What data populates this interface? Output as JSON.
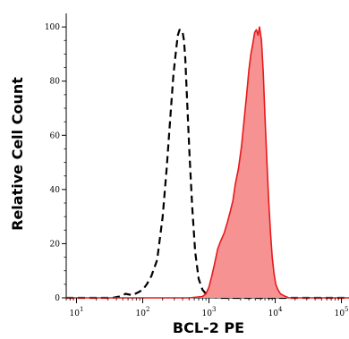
{
  "chart_data": {
    "type": "area",
    "xlabel": "BCL-2 PE",
    "ylabel": "Relative Cell Count",
    "xscale": "log",
    "xlim": [
      7,
      130000
    ],
    "ylim": [
      0,
      105
    ],
    "x_ticks": [
      {
        "value": 10,
        "base": "10",
        "exp": "1"
      },
      {
        "value": 100,
        "base": "10",
        "exp": "2"
      },
      {
        "value": 1000,
        "base": "10",
        "exp": "3"
      },
      {
        "value": 10000,
        "base": "10",
        "exp": "4"
      },
      {
        "value": 100000,
        "base": "10",
        "exp": "5"
      }
    ],
    "y_ticks": [
      0,
      20,
      40,
      60,
      80,
      100
    ],
    "series": [
      {
        "style": "dashed",
        "color": "#000000",
        "filled": false,
        "x": [
          7,
          20,
          35,
          45,
          55,
          70,
          85,
          100,
          115,
          135,
          165,
          200,
          230,
          260,
          290,
          320,
          340,
          360,
          380,
          400,
          420,
          440,
          470,
          510,
          560,
          620,
          700,
          800,
          900,
          1000,
          1100,
          1300,
          2000,
          5000,
          20000,
          130000
        ],
        "y": [
          0,
          0,
          0,
          0.5,
          1.5,
          1,
          2,
          3,
          5,
          8,
          14,
          30,
          48,
          66,
          82,
          92,
          97,
          99,
          99,
          98,
          95,
          88,
          72,
          52,
          33,
          17,
          7,
          3,
          1.5,
          1,
          0.5,
          0,
          0,
          0,
          0,
          0
        ]
      },
      {
        "style": "solid",
        "color": "#e8181a",
        "fill": "#f79292",
        "filled": true,
        "x": [
          7,
          500,
          800,
          900,
          1000,
          1100,
          1200,
          1350,
          1500,
          1700,
          1900,
          2100,
          2300,
          2500,
          2800,
          3100,
          3400,
          3700,
          4000,
          4300,
          4600,
          4900,
          5200,
          5500,
          5800,
          6200,
          6600,
          7000,
          7500,
          8000,
          8500,
          9000,
          9600,
          10200,
          11000,
          12000,
          13500,
          16000,
          25000,
          130000
        ],
        "y": [
          0,
          0,
          0.5,
          1.5,
          4,
          8,
          12,
          18,
          21,
          24,
          28,
          32,
          36,
          42,
          48,
          56,
          66,
          75,
          84,
          90,
          94,
          98,
          99,
          97,
          100,
          95,
          83,
          67,
          50,
          35,
          24,
          15,
          9,
          5,
          3,
          1.5,
          0.8,
          0,
          0,
          0
        ]
      }
    ]
  }
}
